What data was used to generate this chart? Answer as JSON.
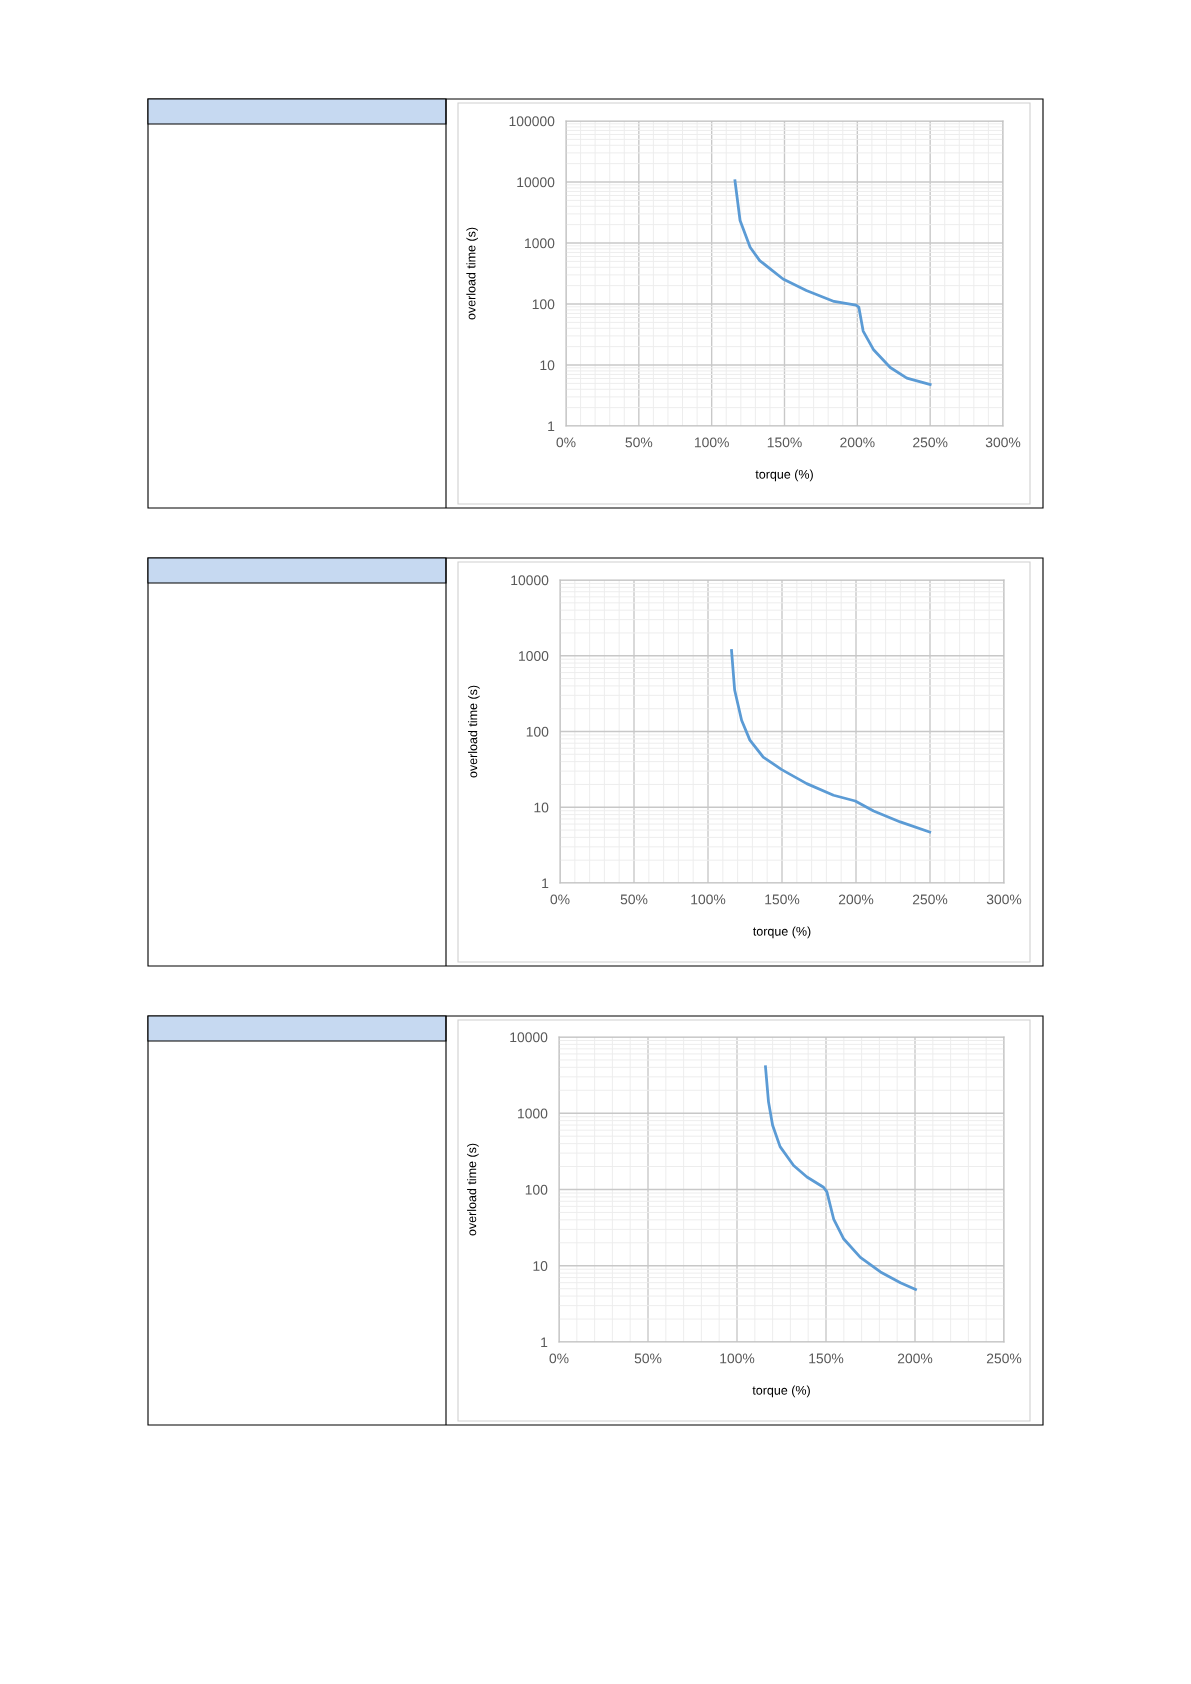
{
  "chart_data": [
    {
      "type": "line",
      "xlabel": "torque (%)",
      "ylabel": "overload time (s)",
      "log": "y",
      "grid": true,
      "marker": "none",
      "line_style": "solid",
      "xlim": [
        0,
        300
      ],
      "xticks": [
        {
          "value": 0,
          "label": "0%"
        },
        {
          "value": 50,
          "label": "50%"
        },
        {
          "value": 100,
          "label": "100%"
        },
        {
          "value": 150,
          "label": "150%"
        },
        {
          "value": 200,
          "label": "200%"
        },
        {
          "value": 250,
          "label": "250%"
        },
        {
          "value": 300,
          "label": "300%"
        }
      ],
      "ylim": [
        1,
        100000
      ],
      "yticks": [
        1,
        10,
        100,
        1000,
        10000,
        100000
      ],
      "series": [
        {
          "color": "#5b9bd5",
          "x": [
            116,
            119.5,
            126.4,
            133,
            149,
            165,
            184,
            199,
            201,
            204,
            211,
            222.6,
            234,
            250
          ],
          "values": [
            10500,
            2340,
            850,
            515,
            257,
            166,
            110,
            96,
            89,
            36,
            18,
            9.1,
            6.1,
            4.8
          ]
        }
      ]
    },
    {
      "type": "line",
      "xlabel": "torque (%)",
      "ylabel": "overload time (s)",
      "log": "y",
      "grid": true,
      "marker": "none",
      "line_style": "solid",
      "xlim": [
        0,
        300
      ],
      "xticks": [
        {
          "value": 0,
          "label": "0%"
        },
        {
          "value": 50,
          "label": "50%"
        },
        {
          "value": 100,
          "label": "100%"
        },
        {
          "value": 150,
          "label": "150%"
        },
        {
          "value": 200,
          "label": "200%"
        },
        {
          "value": 250,
          "label": "250%"
        },
        {
          "value": 300,
          "label": "300%"
        }
      ],
      "ylim": [
        1,
        10000
      ],
      "yticks": [
        1,
        10,
        100,
        1000,
        10000
      ],
      "series": [
        {
          "color": "#5b9bd5",
          "x": [
            115.9,
            118,
            122.7,
            128.3,
            137.3,
            149.8,
            166.7,
            184.8,
            199.5,
            211.9,
            229.9,
            249.8
          ],
          "values": [
            1170,
            353,
            141,
            77,
            46,
            31.4,
            20.5,
            14.4,
            12.1,
            8.9,
            6.4,
            4.7
          ]
        }
      ]
    },
    {
      "type": "line",
      "xlabel": "torque (%)",
      "ylabel": "overload time (s)",
      "log": "y",
      "grid": true,
      "marker": "none",
      "line_style": "solid",
      "xlim": [
        0,
        250
      ],
      "xticks": [
        {
          "value": 0,
          "label": "0%"
        },
        {
          "value": 50,
          "label": "50%"
        },
        {
          "value": 100,
          "label": "100%"
        },
        {
          "value": 150,
          "label": "150%"
        },
        {
          "value": 200,
          "label": "200%"
        },
        {
          "value": 250,
          "label": "250%"
        }
      ],
      "ylim": [
        1,
        10000
      ],
      "yticks": [
        1,
        10,
        100,
        1000,
        10000
      ],
      "series": [
        {
          "color": "#5b9bd5",
          "x": [
            116,
            117.7,
            120,
            124.2,
            131.8,
            139.3,
            148.6,
            150.5,
            154.3,
            160,
            169.3,
            180.6,
            191.8,
            200.3
          ],
          "values": [
            4070,
            1410,
            695,
            365,
            206,
            146,
            107,
            93,
            41,
            22.4,
            12.9,
            8.3,
            6.0,
            4.9
          ]
        }
      ]
    }
  ]
}
